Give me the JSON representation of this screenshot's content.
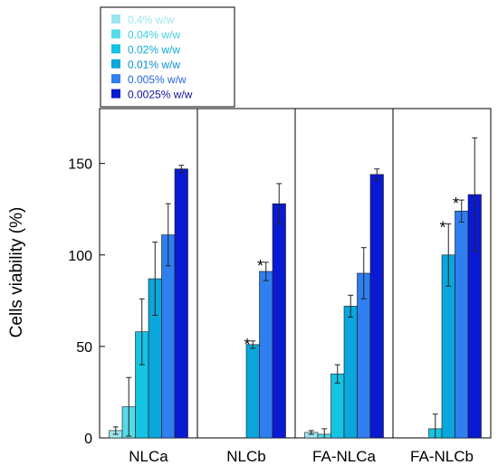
{
  "chart_data": {
    "type": "bar",
    "ylabel": "Cells viability (%)",
    "xlabel": "",
    "title": "",
    "ylim": [
      0,
      180
    ],
    "yticks": [
      0,
      50,
      100,
      150
    ],
    "legend_position": "top-left",
    "categories": [
      "NLCa",
      "NLCb",
      "FA-NLCa",
      "FA-NLCb"
    ],
    "series": [
      {
        "name": "0.4% w/w",
        "color": "#9de5ee",
        "text_color": "#9de5ee",
        "values": [
          4,
          null,
          3,
          null
        ],
        "errors": [
          2,
          null,
          1,
          null
        ]
      },
      {
        "name": "0.04% w/w",
        "color": "#55dbe8",
        "text_color": "#3fcfe0",
        "values": [
          17,
          null,
          2,
          null
        ],
        "errors": [
          16,
          null,
          3,
          null
        ]
      },
      {
        "name": "0.02% w/w",
        "color": "#15c3e2",
        "text_color": "#0fa9d6",
        "values": [
          58,
          null,
          35,
          5
        ],
        "errors": [
          18,
          null,
          5,
          8
        ]
      },
      {
        "name": "0.01% w/w",
        "color": "#0aa6dc",
        "text_color": "#0b8fd0",
        "values": [
          87,
          51,
          72,
          100
        ],
        "errors": [
          20,
          2,
          6,
          17
        ]
      },
      {
        "name": "0.005% w/w",
        "color": "#2f7ff0",
        "text_color": "#2566d8",
        "values": [
          111,
          91,
          90,
          124
        ],
        "errors": [
          17,
          5,
          14,
          6
        ]
      },
      {
        "name": "0.0025% w/w",
        "color": "#0a1ad2",
        "text_color": "#10149c",
        "values": [
          147,
          128,
          144,
          133
        ],
        "errors": [
          2,
          11,
          3,
          31
        ]
      }
    ],
    "significance": [
      {
        "category": "NLCb",
        "series": "0.01% w/w",
        "mark": "*"
      },
      {
        "category": "NLCb",
        "series": "0.005% w/w",
        "mark": "*"
      },
      {
        "category": "FA-NLCb",
        "series": "0.01% w/w",
        "mark": "*"
      },
      {
        "category": "FA-NLCb",
        "series": "0.005% w/w",
        "mark": "*"
      }
    ]
  }
}
